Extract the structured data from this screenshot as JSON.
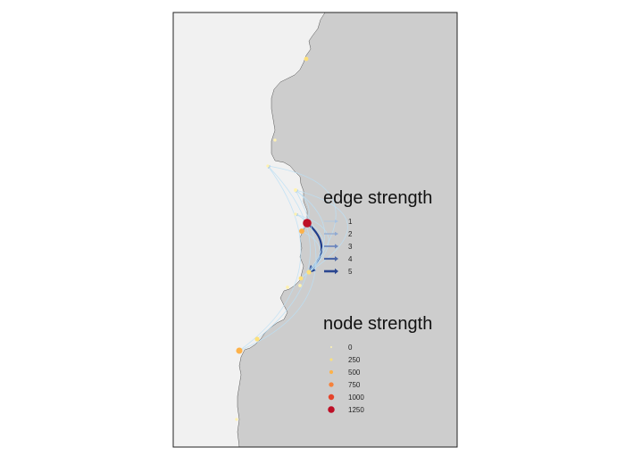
{
  "map": {
    "colors": {
      "sea": "#f1f1f1",
      "land": "#cdcdcd",
      "coast": "#555555",
      "frame": "#222222",
      "flow_light": "#bcdff5",
      "flow_dark": "#1f3e8c"
    }
  },
  "edge_legend": {
    "title": "edge strength",
    "items": [
      {
        "label": "1",
        "color": "#a9c4e3"
      },
      {
        "label": "2",
        "color": "#8fa9d2"
      },
      {
        "label": "3",
        "color": "#6c86bd"
      },
      {
        "label": "4",
        "color": "#4a65a6"
      },
      {
        "label": "5",
        "color": "#2a4690"
      }
    ]
  },
  "node_legend": {
    "title": "node strength",
    "items": [
      {
        "label": "0",
        "color": "#fff2b0"
      },
      {
        "label": "250",
        "color": "#fde07a"
      },
      {
        "label": "500",
        "color": "#fdb24a"
      },
      {
        "label": "750",
        "color": "#f6813a"
      },
      {
        "label": "1000",
        "color": "#e5442a"
      },
      {
        "label": "1250",
        "color": "#bd0f26"
      }
    ]
  },
  "nodes": [
    {
      "id": "n1",
      "value": 150,
      "color": "#fde07a"
    },
    {
      "id": "n2",
      "value": 20,
      "color": "#fff2b0"
    },
    {
      "id": "n3",
      "value": 20,
      "color": "#fff2b0"
    },
    {
      "id": "n4",
      "value": 60,
      "color": "#fff2b0"
    },
    {
      "id": "n5",
      "value": 20,
      "color": "#fff2b0"
    },
    {
      "id": "n6",
      "value": 1300,
      "color": "#bd0f26"
    },
    {
      "id": "n7",
      "value": 300,
      "color": "#fdb24a"
    },
    {
      "id": "n8",
      "value": 200,
      "color": "#fde07a"
    },
    {
      "id": "n9",
      "value": 150,
      "color": "#fde07a"
    },
    {
      "id": "n10",
      "value": 40,
      "color": "#fff2b0"
    },
    {
      "id": "n11",
      "value": 40,
      "color": "#fff2b0"
    },
    {
      "id": "n12",
      "value": 550,
      "color": "#fdb24a"
    },
    {
      "id": "n13",
      "value": 200,
      "color": "#fde07a"
    },
    {
      "id": "n14",
      "value": 20,
      "color": "#fff2b0"
    }
  ],
  "edges": [
    {
      "from": "n6",
      "to": "n8",
      "strength": 5
    },
    {
      "from": "n12",
      "to": "n4",
      "strength": 1
    },
    {
      "from": "n8",
      "to": "n4",
      "strength": 1
    },
    {
      "from": "n12",
      "to": "n3",
      "strength": 1
    },
    {
      "from": "n8",
      "to": "n5",
      "strength": 1
    },
    {
      "from": "n9",
      "to": "n5",
      "strength": 1
    },
    {
      "from": "n7",
      "to": "n5",
      "strength": 1
    },
    {
      "from": "n8",
      "to": "n7",
      "strength": 1
    },
    {
      "from": "n9",
      "to": "n4",
      "strength": 1
    },
    {
      "from": "n13",
      "to": "n3",
      "strength": 1
    },
    {
      "from": "n7",
      "to": "n4",
      "strength": 1
    },
    {
      "from": "n8",
      "to": "n3",
      "strength": 1
    }
  ]
}
